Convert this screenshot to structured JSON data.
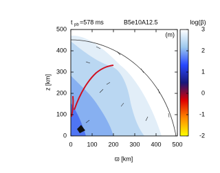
{
  "chart_data": {
    "type": "heatmap",
    "time_label": {
      "symbol": "t",
      "subscript": "pb",
      "text": "=578 ms"
    },
    "model": "B5e10A12.5",
    "panel": "(m)",
    "xlabel": "ϖ [km]",
    "ylabel": "z [km]",
    "xlim": [
      0,
      500
    ],
    "xticks": [
      0,
      100,
      200,
      300,
      400,
      500
    ],
    "ylim": [
      0,
      500
    ],
    "yticks": [
      0,
      100,
      200,
      300,
      400,
      500
    ],
    "colorbar": {
      "label": "log(β)",
      "lim": [
        -2,
        3
      ],
      "ticks": [
        -2,
        -1,
        0,
        1,
        2,
        3
      ],
      "colormap": [
        "#ffff00",
        "#ff8c00",
        "#e00000",
        "#18187a",
        "#2848ff",
        "#9cc8ee",
        "#ffffff"
      ]
    }
  }
}
